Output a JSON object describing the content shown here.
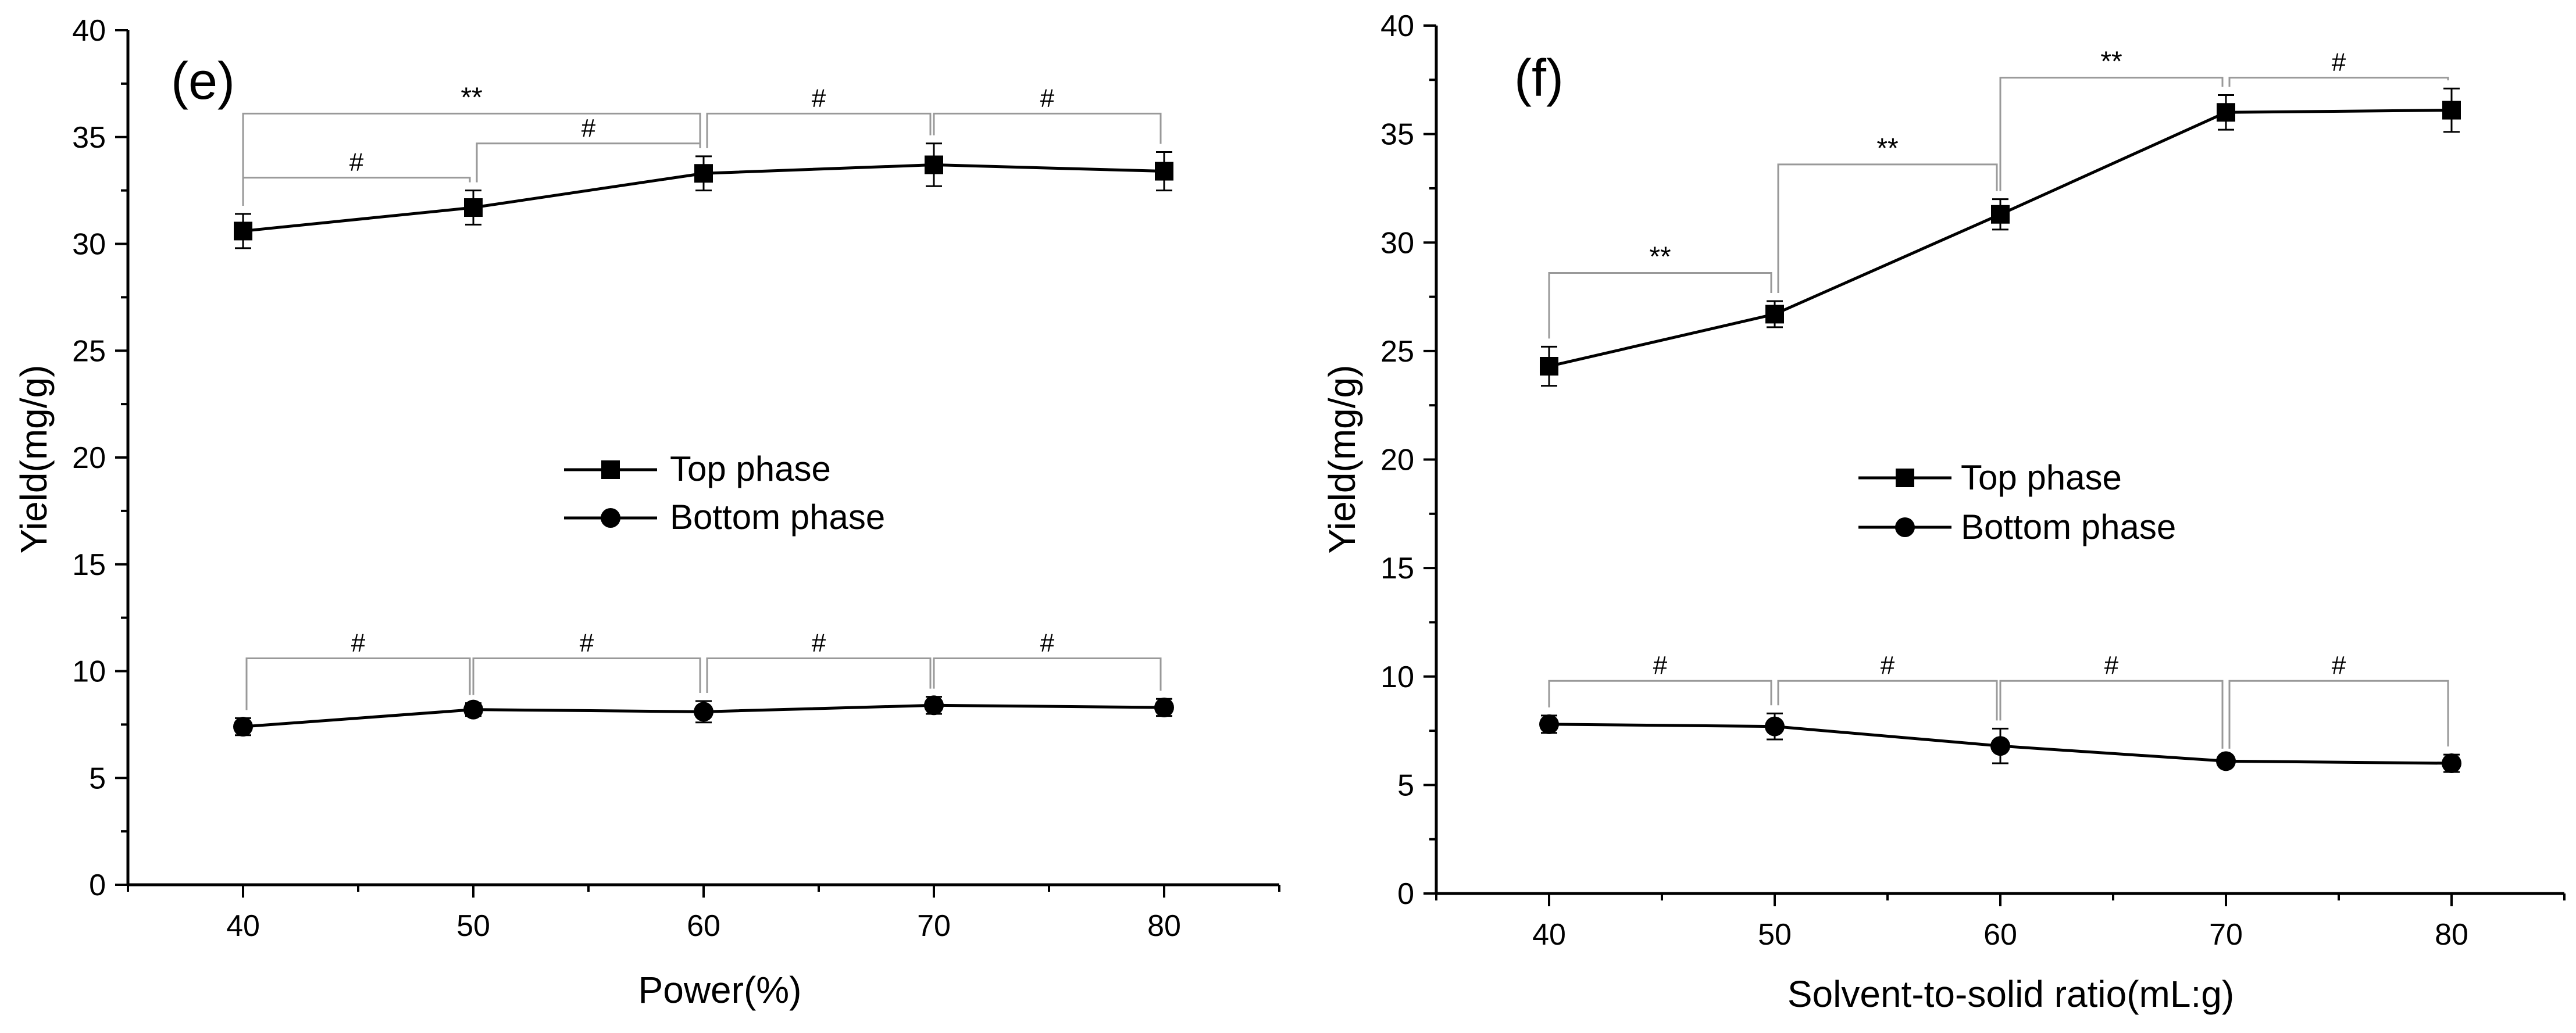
{
  "chart_data": [
    {
      "panel_label": "(e)",
      "type": "line",
      "xlabel": "Power(%)",
      "ylabel": "Yield(mg/g)",
      "x": [
        40,
        50,
        60,
        70,
        80
      ],
      "xlim": [
        35,
        85
      ],
      "ylim": [
        0,
        40
      ],
      "x_ticks": [
        40,
        50,
        60,
        70,
        80
      ],
      "y_ticks": [
        0,
        5,
        10,
        15,
        20,
        25,
        30,
        35,
        40
      ],
      "grid": false,
      "legend_position": "center",
      "series": [
        {
          "name": "Top phase",
          "marker": "square",
          "values": [
            30.6,
            31.7,
            33.3,
            33.7,
            33.4
          ],
          "errors": [
            0.8,
            0.8,
            0.8,
            1.0,
            0.9
          ]
        },
        {
          "name": "Bottom phase",
          "marker": "circle",
          "values": [
            7.4,
            8.2,
            8.1,
            8.4,
            8.3
          ],
          "errors": [
            0.4,
            0.3,
            0.5,
            0.4,
            0.4
          ]
        }
      ],
      "annotations": [
        {
          "from": 40,
          "to": 50,
          "label": "#",
          "level": 33.1
        },
        {
          "from": 50,
          "to": 60,
          "label": "#",
          "level": 34.7
        },
        {
          "from": 40,
          "to": 60,
          "label": "**",
          "level": 36.1
        },
        {
          "from": 60,
          "to": 70,
          "label": "#",
          "level": 36.1
        },
        {
          "from": 70,
          "to": 80,
          "label": "#",
          "level": 36.1
        },
        {
          "from": 40,
          "to": 50,
          "label": "#",
          "level": 10.6
        },
        {
          "from": 50,
          "to": 60,
          "label": "#",
          "level": 10.6
        },
        {
          "from": 60,
          "to": 70,
          "label": "#",
          "level": 10.6
        },
        {
          "from": 70,
          "to": 80,
          "label": "#",
          "level": 10.6
        }
      ]
    },
    {
      "panel_label": "(f)",
      "type": "line",
      "xlabel": "Solvent-to-solid ratio(mL:g)",
      "ylabel": "Yield(mg/g)",
      "x": [
        40,
        50,
        60,
        70,
        80
      ],
      "xlim": [
        35,
        85
      ],
      "ylim": [
        0,
        40
      ],
      "x_ticks": [
        40,
        50,
        60,
        70,
        80
      ],
      "y_ticks": [
        0,
        5,
        10,
        15,
        20,
        25,
        30,
        35,
        40
      ],
      "grid": false,
      "legend_position": "center",
      "series": [
        {
          "name": "Top phase",
          "marker": "square",
          "values": [
            24.3,
            26.7,
            31.3,
            36.0,
            36.1
          ],
          "errors": [
            0.9,
            0.6,
            0.7,
            0.8,
            1.0
          ]
        },
        {
          "name": "Bottom phase",
          "marker": "circle",
          "values": [
            7.8,
            7.7,
            6.8,
            6.1,
            6.0
          ],
          "errors": [
            0.4,
            0.6,
            0.8,
            0.2,
            0.4
          ]
        }
      ],
      "annotations": [
        {
          "from": 40,
          "to": 50,
          "label": "**",
          "level": 28.6
        },
        {
          "from": 50,
          "to": 60,
          "label": "**",
          "level": 33.6
        },
        {
          "from": 60,
          "to": 70,
          "label": "**",
          "level": 37.6
        },
        {
          "from": 70,
          "to": 80,
          "label": "#",
          "level": 37.6
        },
        {
          "from": 40,
          "to": 50,
          "label": "#",
          "level": 9.8
        },
        {
          "from": 50,
          "to": 60,
          "label": "#",
          "level": 9.8
        },
        {
          "from": 60,
          "to": 70,
          "label": "#",
          "level": 9.8
        },
        {
          "from": 70,
          "to": 80,
          "label": "#",
          "level": 9.8
        }
      ]
    }
  ]
}
